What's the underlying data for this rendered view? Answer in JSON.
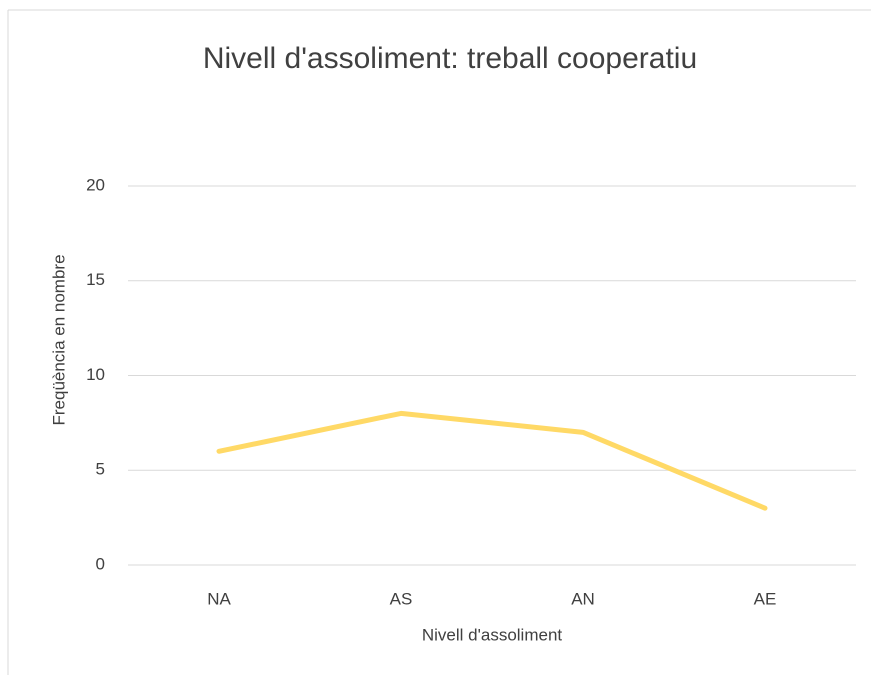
{
  "chart_data": {
    "type": "line",
    "title": "Nivell d'assoliment: treball cooperatiu",
    "x_label": "Nivell d'assoliment",
    "y_label": "Freqüència en nombre",
    "categories": [
      "NA",
      "AS",
      "AN",
      "AE"
    ],
    "values": [
      6,
      8,
      7,
      3
    ],
    "color": "#ffd966",
    "ylim": [
      0,
      20
    ],
    "yticks": [
      0,
      5,
      10,
      15,
      20
    ],
    "grid": true
  }
}
